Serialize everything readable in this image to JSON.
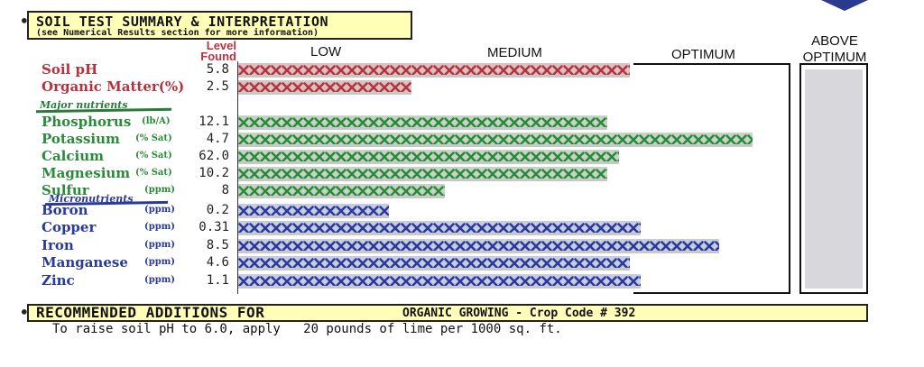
{
  "header": {
    "title": "SOIL TEST SUMMARY & INTERPRETATION",
    "subtitle": "(see Numerical Results section for more information)"
  },
  "columns": {
    "level_found": "Level Found",
    "low": "LOW",
    "medium": "MEDIUM",
    "optimum": "OPTIMUM",
    "above_optimum": "ABOVE OPTIMUM"
  },
  "groups": {
    "major": "Major nutrients",
    "micro": "Micronutrients"
  },
  "rows": [
    {
      "label": "Soil pH",
      "unit": "",
      "value": "5.8",
      "level": 0.7,
      "color": "#b8323e"
    },
    {
      "label": "Organic Matter(%)",
      "unit": "",
      "value": "2.5",
      "level": 0.31,
      "color": "#b8323e"
    },
    {
      "label": "Phosphorus",
      "unit": "(lb/A)",
      "value": "12.1",
      "level": 0.66,
      "color": "#2a8a3a"
    },
    {
      "label": "Potassium",
      "unit": "(% Sat)",
      "value": "4.7",
      "level": 0.92,
      "color": "#2a8a3a"
    },
    {
      "label": "Calcium",
      "unit": "(% Sat)",
      "value": "62.0",
      "level": 0.68,
      "color": "#2a8a3a"
    },
    {
      "label": "Magnesium",
      "unit": "(% Sat)",
      "value": "10.2",
      "level": 0.66,
      "color": "#2a8a3a"
    },
    {
      "label": "Sulfur",
      "unit": "(ppm)",
      "value": "8",
      "level": 0.37,
      "color": "#2a8a3a"
    },
    {
      "label": "Boron",
      "unit": "(ppm)",
      "value": "0.2",
      "level": 0.27,
      "color": "#2a3a9c"
    },
    {
      "label": "Copper",
      "unit": "(ppm)",
      "value": "0.31",
      "level": 0.72,
      "color": "#2a3a9c"
    },
    {
      "label": "Iron",
      "unit": "(ppm)",
      "value": "8.5",
      "level": 0.86,
      "color": "#2a3a9c"
    },
    {
      "label": "Manganese",
      "unit": "(ppm)",
      "value": "4.6",
      "level": 0.7,
      "color": "#2a3a9c"
    },
    {
      "label": "Zinc",
      "unit": "(ppm)",
      "value": "1.1",
      "level": 0.72,
      "color": "#2a3a9c"
    }
  ],
  "recommended": {
    "title": "RECOMMENDED ADDITIONS FOR",
    "crop": "ORGANIC GROWING - Crop Code # 392",
    "text": "To raise soil pH to 6.0, apply   20 pounds of lime per 1000 sq. ft."
  }
}
